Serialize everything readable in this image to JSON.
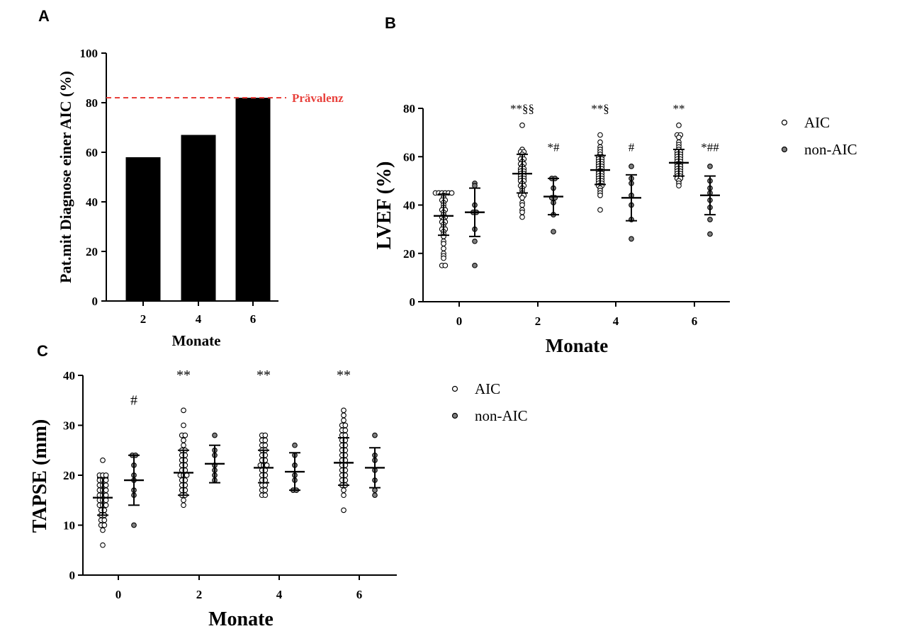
{
  "chart_data": [
    {
      "id": "A",
      "panel_label": "A",
      "type": "bar",
      "categories": [
        "2",
        "4",
        "6"
      ],
      "values": [
        58,
        67,
        82
      ],
      "ylabel": "Pat.mit Diagnose einer AIC (%)",
      "xlabel": "Monate",
      "ylim": [
        0,
        100
      ],
      "yticks": [
        0,
        20,
        40,
        60,
        80,
        100
      ],
      "bar_color": "#000000",
      "reference_line": {
        "value": 82,
        "label": "Prävalenz",
        "color": "#e8413c",
        "style": "dashed"
      },
      "grid": false
    },
    {
      "id": "B",
      "panel_label": "B",
      "type": "scatter",
      "xlabel": "Monate",
      "ylabel": "LVEF (%)",
      "ylim": [
        0,
        80
      ],
      "yticks": [
        0,
        20,
        40,
        60,
        80
      ],
      "categories": [
        "0",
        "2",
        "4",
        "6"
      ],
      "legend_position": "right",
      "grid": false,
      "series": [
        {
          "name": "AIC",
          "marker_fill": "#ffffff",
          "groups": [
            {
              "x": "0",
              "mean": 35.5,
              "sd_low": 27.5,
              "sd_high": 44.5,
              "points": [
                45,
                45,
                45,
                45,
                45,
                45,
                44,
                43,
                42,
                42,
                41,
                40,
                39,
                38,
                38,
                37,
                36,
                35,
                35,
                34,
                33,
                33,
                32,
                31,
                30,
                30,
                29,
                28,
                27,
                25,
                24,
                22,
                20,
                19,
                18,
                15,
                15
              ]
            },
            {
              "x": "2",
              "mean": 53,
              "sd_low": 45,
              "sd_high": 61,
              "points": [
                73,
                63,
                62,
                62,
                61,
                60,
                59,
                59,
                58,
                57,
                57,
                56,
                55,
                55,
                54,
                54,
                53,
                53,
                52,
                52,
                51,
                51,
                50,
                50,
                49,
                48,
                48,
                47,
                46,
                45,
                44,
                44,
                43,
                41,
                40,
                38,
                37,
                35
              ]
            },
            {
              "x": "4",
              "mean": 54.5,
              "sd_low": 48.5,
              "sd_high": 60.5,
              "points": [
                69,
                66,
                64,
                63,
                62,
                61,
                60,
                60,
                59,
                59,
                58,
                58,
                57,
                57,
                56,
                56,
                55,
                55,
                54,
                54,
                53,
                53,
                52,
                52,
                51,
                51,
                50,
                50,
                49,
                49,
                48,
                48,
                47,
                46,
                45,
                44,
                38
              ]
            },
            {
              "x": "6",
              "mean": 57.5,
              "sd_low": 52,
              "sd_high": 63,
              "points": [
                73,
                69,
                69,
                68,
                66,
                65,
                64,
                63,
                62,
                62,
                61,
                61,
                60,
                60,
                59,
                59,
                58,
                58,
                57,
                57,
                56,
                56,
                55,
                55,
                54,
                54,
                53,
                53,
                52,
                52,
                51,
                51,
                50,
                49,
                48
              ]
            }
          ],
          "annotations": [
            {
              "x": "2",
              "text": "**§§",
              "y": 80
            },
            {
              "x": "4",
              "text": "**§",
              "y": 80
            },
            {
              "x": "6",
              "text": "**",
              "y": 80
            }
          ]
        },
        {
          "name": "non-AIC",
          "marker_fill": "#7f7f7f",
          "groups": [
            {
              "x": "0",
              "mean": 37,
              "sd_low": 27,
              "sd_high": 47,
              "points": [
                49,
                48,
                40,
                37,
                37,
                30,
                25,
                15
              ]
            },
            {
              "x": "2",
              "mean": 43.5,
              "sd_low": 36,
              "sd_high": 51,
              "points": [
                51,
                51,
                47,
                43,
                43,
                41,
                36,
                29
              ]
            },
            {
              "x": "4",
              "mean": 43,
              "sd_low": 33.5,
              "sd_high": 52.5,
              "points": [
                56,
                51,
                49,
                44,
                40,
                34,
                26
              ]
            },
            {
              "x": "6",
              "mean": 44,
              "sd_low": 36,
              "sd_high": 52,
              "points": [
                56,
                50,
                47,
                45,
                42,
                39,
                34,
                28
              ]
            }
          ],
          "annotations": [
            {
              "x": "2",
              "text": "*#",
              "y": 64
            },
            {
              "x": "4",
              "text": "#",
              "y": 64
            },
            {
              "x": "6",
              "text": "*##",
              "y": 64
            }
          ]
        }
      ]
    },
    {
      "id": "C",
      "panel_label": "C",
      "type": "scatter",
      "xlabel": "Monate",
      "ylabel": "TAPSE (mm)",
      "ylim": [
        0,
        40
      ],
      "yticks": [
        0,
        10,
        20,
        30,
        40
      ],
      "categories": [
        "0",
        "2",
        "4",
        "6"
      ],
      "legend_position": "right",
      "grid": false,
      "series": [
        {
          "name": "AIC",
          "marker_fill": "#ffffff",
          "groups": [
            {
              "x": "0",
              "mean": 15.5,
              "sd_low": 12,
              "sd_high": 19.5,
              "points": [
                23,
                20,
                20,
                20,
                19,
                19,
                19,
                18,
                18,
                18,
                17,
                17,
                17,
                16,
                16,
                16,
                15,
                15,
                15,
                14,
                14,
                14,
                13,
                13,
                12,
                12,
                11,
                11,
                10,
                10,
                9,
                6
              ]
            },
            {
              "x": "2",
              "mean": 20.5,
              "sd_low": 16,
              "sd_high": 25,
              "points": [
                33,
                30,
                28,
                28,
                27,
                26,
                25,
                25,
                24,
                24,
                23,
                23,
                22,
                22,
                21,
                21,
                20,
                20,
                20,
                19,
                19,
                18,
                18,
                17,
                17,
                16,
                16,
                15,
                14
              ]
            },
            {
              "x": "4",
              "mean": 21.5,
              "sd_low": 18.5,
              "sd_high": 25,
              "points": [
                28,
                28,
                27,
                27,
                26,
                26,
                25,
                25,
                24,
                24,
                23,
                23,
                22,
                22,
                22,
                21,
                21,
                20,
                20,
                19,
                19,
                18,
                18,
                17,
                17,
                16,
                16
              ]
            },
            {
              "x": "6",
              "mean": 22.5,
              "sd_low": 18,
              "sd_high": 27.5,
              "points": [
                33,
                32,
                31,
                30,
                30,
                29,
                29,
                28,
                28,
                27,
                27,
                26,
                26,
                25,
                25,
                24,
                24,
                23,
                23,
                22,
                22,
                21,
                21,
                20,
                20,
                19,
                19,
                18,
                18,
                17,
                16,
                13
              ]
            }
          ],
          "annotations": [
            {
              "x": "2",
              "text": "**",
              "y": 40
            },
            {
              "x": "4",
              "text": "**",
              "y": 40
            },
            {
              "x": "6",
              "text": "**",
              "y": 40
            }
          ]
        },
        {
          "name": "non-AIC",
          "marker_fill": "#7f7f7f",
          "groups": [
            {
              "x": "0",
              "mean": 19,
              "sd_low": 14,
              "sd_high": 24,
              "points": [
                24,
                24,
                22,
                20,
                19,
                17,
                16,
                10
              ]
            },
            {
              "x": "2",
              "mean": 22.3,
              "sd_low": 18.5,
              "sd_high": 26,
              "points": [
                28,
                25,
                24,
                22,
                21,
                20,
                19
              ]
            },
            {
              "x": "4",
              "mean": 20.7,
              "sd_low": 17,
              "sd_high": 24.5,
              "points": [
                26,
                24,
                22,
                20,
                19,
                17,
                17
              ]
            },
            {
              "x": "6",
              "mean": 21.5,
              "sd_low": 17.5,
              "sd_high": 25.5,
              "points": [
                28,
                24,
                23,
                21,
                19,
                17,
                16
              ]
            }
          ],
          "annotations": [
            {
              "x": "0",
              "text": "#",
              "y": 35
            }
          ]
        }
      ]
    }
  ]
}
